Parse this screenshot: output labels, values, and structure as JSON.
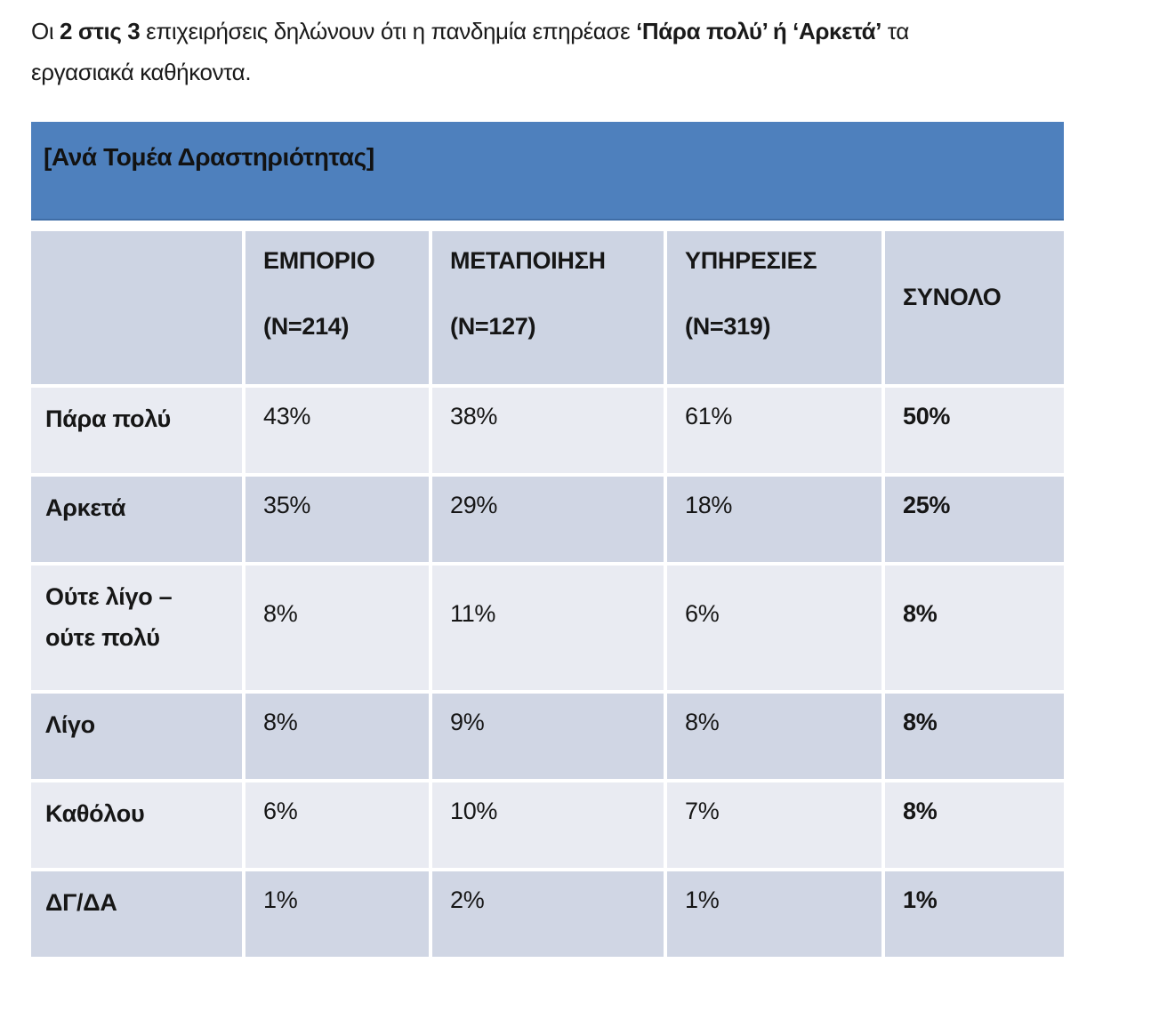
{
  "intro": {
    "line1_prefix": "Οι ",
    "line1_bold1": "2 στις 3",
    "line1_middle": " επιχειρήσεις δηλώνουν ότι η πανδημία επηρέασε ",
    "line1_bold2": "‘Πάρα πολύ’ ή ‘Αρκετά’",
    "line1_suffix": " τα",
    "line2": "εργασιακά καθήκοντα."
  },
  "section": {
    "title": "[Ανά Τομέα Δραστηριότητας]"
  },
  "table": {
    "columns": [
      {
        "name": "ΕΜΠΟΡΙΟ",
        "n": "(N=214)"
      },
      {
        "name": "ΜΕΤΑΠΟΙΗΣΗ",
        "n": "(N=127)"
      },
      {
        "name": "ΥΠΗΡΕΣΙΕΣ",
        "n": "(N=319)"
      },
      {
        "name": "ΣΥΝΟΛΟ",
        "n": ""
      }
    ],
    "rows": [
      {
        "label": "Πάρα πολύ",
        "values": [
          "43%",
          "38%",
          "61%",
          "50%"
        ]
      },
      {
        "label": "Αρκετά",
        "values": [
          "35%",
          "29%",
          "18%",
          "25%"
        ]
      },
      {
        "label": "Ούτε λίγο –\nούτε πολύ",
        "values": [
          "8%",
          "11%",
          "6%",
          "8%"
        ]
      },
      {
        "label": "Λίγο",
        "values": [
          "8%",
          "9%",
          "8%",
          "8%"
        ]
      },
      {
        "label": "Καθόλου",
        "values": [
          "6%",
          "10%",
          "7%",
          "8%"
        ]
      },
      {
        "label": "ΔΓ/ΔΑ",
        "values": [
          "1%",
          "2%",
          "1%",
          "1%"
        ]
      }
    ]
  },
  "colors": {
    "section_bar_blue": "#4E80BD",
    "header_band": "#CDD4E3",
    "band_light": "#E9EBF2",
    "band_dark": "#D0D6E4",
    "text": "#161616",
    "page_background": "#FFFFFF"
  }
}
